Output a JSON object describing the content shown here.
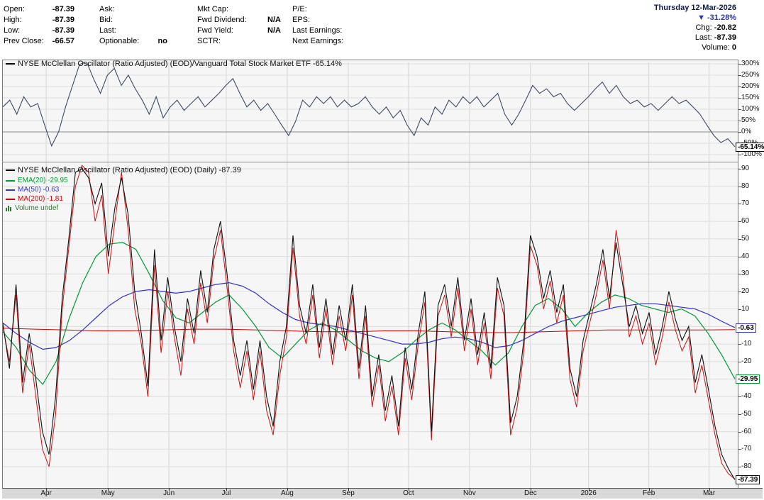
{
  "meta": {
    "date": "Thursday 12-Mar-2026",
    "change_arrow": "▼",
    "change_pct": "-31.28%",
    "chg_label": "Chg:",
    "chg_value": "-20.82",
    "last_label": "Last:",
    "last_value": "-87.39",
    "volume_label": "Volume:",
    "volume_value": "0"
  },
  "colors": {
    "date": "#0d1a4f",
    "change": "#2a35b8",
    "top_line": "#3a4b69",
    "volume_legend": "#2e7d32"
  },
  "quote_columns": [
    {
      "rows": [
        [
          "Open:",
          "-87.39"
        ],
        [
          "High:",
          "-87.39"
        ],
        [
          "Low:",
          "-87.39"
        ],
        [
          "Prev Close:",
          "-66.57"
        ]
      ]
    },
    {
      "rows": [
        [
          "Ask:",
          ""
        ],
        [
          "Bid:",
          ""
        ],
        [
          "Last:",
          ""
        ],
        [
          "Optionable:",
          "no"
        ]
      ]
    },
    {
      "rows": [
        [
          "Mkt Cap:",
          ""
        ],
        [
          "Fwd Dividend:",
          "N/A"
        ],
        [
          "Fwd Yield:",
          "N/A"
        ],
        [
          "SCTR:",
          ""
        ]
      ]
    },
    {
      "rows": [
        [
          "P/E:",
          ""
        ],
        [
          "EPS:",
          ""
        ],
        [
          "Last Earnings:",
          ""
        ],
        [
          "Next Earnings:",
          ""
        ]
      ]
    }
  ],
  "chart_data": [
    {
      "type": "line",
      "title": "NYSE McClellan Oscillator (Ratio Adjusted) (EOD)/Vanguard Total Stock Market ETF -65.14%",
      "ylabel": "ratio percent",
      "ylim": [
        -100,
        300
      ],
      "grid": true,
      "legend_position": "top-left",
      "line_color": "#3a4b69",
      "yticks": [
        {
          "v": 300,
          "t": "300%"
        },
        {
          "v": 250,
          "t": "250%"
        },
        {
          "v": 200,
          "t": "200%"
        },
        {
          "v": 150,
          "t": "150%"
        },
        {
          "v": 100,
          "t": "100%"
        },
        {
          "v": 50,
          "t": "50%"
        },
        {
          "v": 0,
          "t": "0%"
        },
        {
          "v": -50,
          "t": "-50%"
        },
        {
          "v": -100,
          "t": "-100%"
        }
      ],
      "zero_line": 0,
      "current_badge": {
        "t": "-65.14%",
        "v": -65.14,
        "border": "#000000"
      },
      "values": [
        110,
        140,
        78,
        155,
        110,
        125,
        30,
        -62,
        0,
        110,
        205,
        297,
        310,
        235,
        170,
        250,
        280,
        205,
        250,
        190,
        140,
        78,
        155,
        62,
        110,
        140,
        95,
        125,
        155,
        110,
        140,
        170,
        205,
        235,
        170,
        110,
        140,
        95,
        125,
        78,
        30,
        -16,
        47,
        140,
        110,
        155,
        125,
        155,
        110,
        140,
        110,
        125,
        155,
        110,
        78,
        110,
        62,
        95,
        30,
        -16,
        62,
        30,
        110,
        78,
        140,
        110,
        155,
        125,
        155,
        110,
        140,
        170,
        78,
        30,
        78,
        140,
        205,
        170,
        190,
        155,
        170,
        125,
        95,
        125,
        155,
        190,
        220,
        170,
        205,
        155,
        125,
        140,
        110,
        125,
        95,
        125,
        155,
        125,
        140,
        110,
        78,
        30,
        -16,
        -47,
        -30,
        -65.14
      ]
    },
    {
      "type": "line",
      "title": "NYSE McClellan Oscillator (Ratio Adjusted) (EOD) (Daily) -87.39",
      "ylabel": "oscillator value",
      "ylim": [
        -95,
        95
      ],
      "grid": true,
      "legend_position": "top-left",
      "yticks": [
        {
          "v": 90,
          "t": "90"
        },
        {
          "v": 80,
          "t": "80"
        },
        {
          "v": 70,
          "t": "70"
        },
        {
          "v": 60,
          "t": "60"
        },
        {
          "v": 50,
          "t": "50"
        },
        {
          "v": 40,
          "t": "40"
        },
        {
          "v": 30,
          "t": "30"
        },
        {
          "v": 20,
          "t": "20"
        },
        {
          "v": 10,
          "t": "10"
        },
        {
          "v": -10,
          "t": "-10"
        },
        {
          "v": -20,
          "t": "-20"
        },
        {
          "v": -40,
          "t": "-40"
        },
        {
          "v": -50,
          "t": "-50"
        },
        {
          "v": -60,
          "t": "-60"
        },
        {
          "v": -70,
          "t": "-70"
        },
        {
          "v": -80,
          "t": "-80"
        }
      ],
      "gridlines": [
        90,
        80,
        70,
        60,
        50,
        40,
        30,
        20,
        10,
        0,
        -10,
        -20,
        -30,
        -40,
        -50,
        -60,
        -70,
        -80
      ],
      "xticks": [
        {
          "t": "Apr",
          "f": 0.059
        },
        {
          "t": "May",
          "f": 0.143
        },
        {
          "t": "Jun",
          "f": 0.226
        },
        {
          "t": "Jul",
          "f": 0.304
        },
        {
          "t": "Aug",
          "f": 0.387
        },
        {
          "t": "Sep",
          "f": 0.47
        },
        {
          "t": "Oct",
          "f": 0.552
        },
        {
          "t": "Nov",
          "f": 0.635
        },
        {
          "t": "Dec",
          "f": 0.718
        },
        {
          "t": "2026",
          "f": 0.797
        },
        {
          "t": "Feb",
          "f": 0.879
        },
        {
          "t": "Mar",
          "f": 0.961
        }
      ],
      "legend": [
        {
          "label": "EMA(20) -29.95",
          "color": "#009933"
        },
        {
          "label": "MA(50) -0.63",
          "color": "#3333cc"
        },
        {
          "label": "MA(200) -1.81",
          "color": "#cc0000"
        }
      ],
      "volume_label": "Volume undef",
      "series": [
        {
          "name": "NYSE McClellan Oscillator (Ratio Adjusted)",
          "color": "#111111",
          "values": [
            2,
            -24,
            24,
            -32,
            -4,
            -30,
            -60,
            -73,
            -40,
            16,
            50,
            88,
            90,
            85,
            70,
            82,
            40,
            68,
            85,
            64,
            20,
            -4,
            -34,
            44,
            -8,
            28,
            0,
            -20,
            16,
            -4,
            32,
            8,
            44,
            60,
            30,
            -8,
            -28,
            -8,
            -36,
            -8,
            -40,
            -57,
            -20,
            0,
            52,
            12,
            -4,
            24,
            -12,
            16,
            -16,
            12,
            -8,
            24,
            -24,
            12,
            -40,
            -16,
            -48,
            -28,
            -57,
            -12,
            -36,
            -4,
            20,
            -60,
            12,
            24,
            0,
            28,
            -8,
            16,
            -16,
            8,
            -24,
            28,
            12,
            -55,
            -40,
            -8,
            52,
            40,
            16,
            32,
            8,
            24,
            -24,
            -40,
            -8,
            8,
            24,
            44,
            16,
            48,
            24,
            0,
            12,
            -4,
            8,
            -16,
            0,
            20,
            4,
            -8,
            0,
            -32,
            -16,
            -36,
            -57,
            -73,
            -81,
            -87.39
          ]
        },
        {
          "name": "",
          "color": "#cc1111",
          "values": [
            0,
            -20,
            18,
            -38,
            -10,
            -40,
            -70,
            -80,
            -50,
            10,
            45,
            80,
            92,
            88,
            60,
            75,
            30,
            60,
            88,
            55,
            10,
            -10,
            -40,
            35,
            -15,
            20,
            -6,
            -28,
            10,
            -10,
            25,
            2,
            38,
            55,
            22,
            -14,
            -35,
            -14,
            -42,
            -14,
            -48,
            -62,
            -28,
            -6,
            45,
            6,
            -10,
            18,
            -18,
            10,
            -22,
            6,
            -14,
            18,
            -30,
            6,
            -46,
            -22,
            -54,
            -34,
            -62,
            -18,
            -42,
            -10,
            14,
            -65,
            6,
            18,
            -6,
            22,
            -14,
            10,
            -22,
            2,
            -30,
            22,
            6,
            -62,
            -46,
            -14,
            46,
            35,
            10,
            26,
            2,
            18,
            -30,
            -46,
            -14,
            2,
            18,
            38,
            10,
            55,
            30,
            -6,
            6,
            -10,
            2,
            -22,
            -6,
            14,
            -2,
            -14,
            -6,
            -38,
            -22,
            -42,
            -62,
            -78,
            -84,
            -87
          ]
        }
      ],
      "overlays": [
        {
          "name": "EMA(20)",
          "color": "#009933",
          "values": [
            -3,
            -12,
            -25,
            -33,
            -20,
            5,
            25,
            40,
            47,
            48,
            44,
            30,
            15,
            5,
            2,
            8,
            14,
            18,
            10,
            0,
            -12,
            -18,
            -10,
            -2,
            2,
            -2,
            -8,
            -14,
            -18,
            -20,
            -15,
            -8,
            -2,
            2,
            -2,
            -8,
            -14,
            -22,
            -15,
            0,
            12,
            16,
            10,
            0,
            8,
            14,
            18,
            16,
            12,
            10,
            8,
            10,
            6,
            -4,
            -16,
            -29.95
          ]
        },
        {
          "name": "MA(50)",
          "color": "#3333cc",
          "values": [
            2,
            -4,
            -9,
            -13,
            -12,
            -8,
            -2,
            5,
            12,
            17,
            20,
            21,
            20,
            19,
            20,
            22,
            24,
            25,
            23,
            19,
            13,
            8,
            4,
            2,
            1,
            0,
            -2,
            -4,
            -6,
            -8,
            -10,
            -10,
            -9,
            -7,
            -6,
            -7,
            -9,
            -12,
            -11,
            -8,
            -4,
            0,
            3,
            5,
            7,
            9,
            11,
            12,
            13,
            13,
            12,
            11,
            10,
            7,
            3,
            -0.63
          ]
        },
        {
          "name": "MA(200)",
          "color": "#cc0000",
          "values": [
            -1,
            -1.5,
            -2,
            -2.5,
            -2.5,
            -2,
            -1.5,
            -1.5,
            -2,
            -2.5,
            -3,
            -3,
            -2.5,
            -2.5,
            -3,
            -3.5,
            -3.5,
            -3,
            -2.5,
            -2,
            -2,
            -2,
            -2,
            -1.81
          ]
        }
      ],
      "badges": [
        {
          "t": "-0.63",
          "v": -0.63,
          "border": "#3333cc"
        },
        {
          "t": "-29.95",
          "v": -29.95,
          "border": "#009933"
        },
        {
          "t": "-87.39",
          "v": -87.39,
          "border": "#111111"
        }
      ]
    }
  ]
}
